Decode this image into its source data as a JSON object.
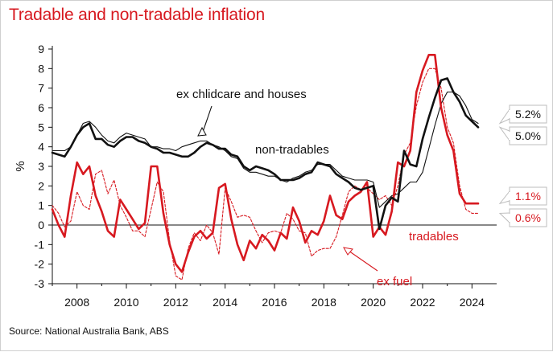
{
  "header": {
    "title": "Tradable and non-tradable inflation"
  },
  "footer": {
    "source": "Source: National Australia Bank, ABS"
  },
  "colors": {
    "red": "#d71920",
    "black": "#111111",
    "title": "#d71920",
    "callout_border": "#bdbdbd"
  },
  "chart_data": {
    "type": "line",
    "ylabel": "%",
    "xlabel": "",
    "ylim": [
      -3,
      9
    ],
    "xlim": [
      2007,
      2025
    ],
    "x_ticks": [
      2008,
      2010,
      2012,
      2014,
      2016,
      2018,
      2020,
      2022,
      2024
    ],
    "y_ticks": [
      -3,
      -2,
      -1,
      0,
      1,
      2,
      3,
      4,
      5,
      6,
      7,
      8,
      9
    ],
    "grid": false,
    "annotations": {
      "ex_childcare": "ex chlidcare and houses",
      "non_tradables": "non-tradables",
      "tradables": "tradables",
      "ex_fuel": "ex fuel"
    },
    "end_labels": [
      "5.2%",
      "5.0%",
      "1.1%",
      "0.6%"
    ],
    "series": [
      {
        "name": "non-tradables",
        "color": "#111111",
        "style": "thick",
        "x": [
          2007.0,
          2007.5,
          2007.75,
          2008.0,
          2008.25,
          2008.5,
          2008.75,
          2009.0,
          2009.25,
          2009.5,
          2009.75,
          2010.0,
          2010.25,
          2010.5,
          2010.75,
          2011.0,
          2011.25,
          2011.5,
          2011.75,
          2012.0,
          2012.25,
          2012.5,
          2012.75,
          2013.0,
          2013.25,
          2013.5,
          2013.75,
          2014.0,
          2014.25,
          2014.5,
          2014.75,
          2015.0,
          2015.25,
          2015.5,
          2015.75,
          2016.0,
          2016.25,
          2016.5,
          2016.75,
          2017.0,
          2017.25,
          2017.5,
          2017.75,
          2018.0,
          2018.25,
          2018.5,
          2018.75,
          2019.0,
          2019.25,
          2019.5,
          2019.75,
          2020.0,
          2020.25,
          2020.5,
          2020.75,
          2021.0,
          2021.25,
          2021.5,
          2021.75,
          2022.0,
          2022.25,
          2022.5,
          2022.75,
          2023.0,
          2023.25,
          2023.5,
          2023.75,
          2024.0,
          2024.25
        ],
        "values": [
          3.7,
          3.5,
          4.0,
          4.6,
          5.0,
          5.2,
          4.4,
          4.4,
          4.1,
          4.0,
          4.3,
          4.5,
          4.5,
          4.3,
          4.2,
          4.0,
          3.9,
          3.7,
          3.7,
          3.6,
          3.5,
          3.5,
          3.7,
          4.0,
          4.2,
          4.1,
          3.9,
          3.9,
          3.6,
          3.5,
          3.0,
          2.8,
          3.0,
          2.9,
          2.8,
          2.6,
          2.3,
          2.3,
          2.3,
          2.4,
          2.6,
          2.7,
          3.2,
          3.1,
          3.0,
          2.6,
          2.4,
          2.2,
          1.9,
          1.8,
          1.9,
          2.0,
          -0.2,
          1.0,
          1.4,
          1.2,
          3.8,
          3.1,
          3.0,
          4.4,
          5.5,
          6.5,
          7.4,
          7.5,
          6.8,
          6.3,
          5.6,
          5.3,
          5.0
        ]
      },
      {
        "name": "ex chlidcare and houses",
        "color": "#111111",
        "style": "thin",
        "x": [
          2007.0,
          2007.5,
          2007.75,
          2008.0,
          2008.25,
          2008.5,
          2008.75,
          2009.0,
          2009.25,
          2009.5,
          2009.75,
          2010.0,
          2010.25,
          2010.5,
          2010.75,
          2011.0,
          2011.25,
          2011.5,
          2011.75,
          2012.0,
          2012.25,
          2012.5,
          2012.75,
          2013.0,
          2013.25,
          2013.5,
          2013.75,
          2014.0,
          2014.25,
          2014.5,
          2014.75,
          2015.0,
          2015.25,
          2015.5,
          2015.75,
          2016.0,
          2016.25,
          2016.5,
          2016.75,
          2017.0,
          2017.25,
          2017.5,
          2017.75,
          2018.0,
          2018.25,
          2018.5,
          2018.75,
          2019.0,
          2019.25,
          2019.5,
          2019.75,
          2020.0,
          2020.25,
          2020.5,
          2020.75,
          2021.0,
          2021.25,
          2021.5,
          2021.75,
          2022.0,
          2022.25,
          2022.5,
          2022.75,
          2023.0,
          2023.25,
          2023.5,
          2023.75,
          2024.0,
          2024.25
        ],
        "values": [
          3.8,
          3.8,
          4.0,
          4.6,
          5.2,
          5.3,
          5.0,
          4.6,
          4.3,
          4.2,
          4.5,
          4.7,
          4.6,
          4.5,
          4.4,
          4.0,
          4.0,
          3.9,
          3.9,
          3.8,
          4.0,
          4.1,
          4.2,
          4.3,
          4.3,
          4.1,
          4.0,
          3.8,
          3.5,
          3.4,
          2.9,
          2.7,
          2.7,
          2.6,
          2.5,
          2.5,
          2.3,
          2.2,
          2.4,
          2.5,
          2.7,
          2.8,
          3.1,
          3.1,
          3.1,
          2.8,
          2.5,
          2.4,
          2.3,
          2.3,
          2.3,
          2.2,
          0.9,
          1.2,
          1.5,
          1.6,
          1.9,
          2.2,
          2.2,
          2.7,
          3.9,
          5.1,
          6.2,
          6.8,
          6.8,
          6.6,
          6.1,
          5.4,
          5.2
        ]
      },
      {
        "name": "tradables",
        "color": "#d71920",
        "style": "thick",
        "x": [
          2007.0,
          2007.25,
          2007.5,
          2007.75,
          2008.0,
          2008.25,
          2008.5,
          2008.75,
          2009.0,
          2009.25,
          2009.5,
          2009.75,
          2010.0,
          2010.25,
          2010.5,
          2010.75,
          2011.0,
          2011.25,
          2011.5,
          2011.75,
          2012.0,
          2012.25,
          2012.5,
          2012.75,
          2013.0,
          2013.25,
          2013.5,
          2013.75,
          2014.0,
          2014.25,
          2014.5,
          2014.75,
          2015.0,
          2015.25,
          2015.5,
          2015.75,
          2016.0,
          2016.25,
          2016.5,
          2016.75,
          2017.0,
          2017.25,
          2017.5,
          2017.75,
          2018.0,
          2018.25,
          2018.5,
          2018.75,
          2019.0,
          2019.25,
          2019.5,
          2019.75,
          2020.0,
          2020.25,
          2020.5,
          2020.75,
          2021.0,
          2021.25,
          2021.5,
          2021.75,
          2022.0,
          2022.25,
          2022.5,
          2022.75,
          2023.0,
          2023.25,
          2023.5,
          2023.75,
          2024.0,
          2024.25
        ],
        "values": [
          0.8,
          0.0,
          -0.6,
          1.5,
          3.2,
          2.6,
          3.0,
          1.5,
          0.7,
          -0.3,
          -0.6,
          1.3,
          0.8,
          0.3,
          -0.2,
          0.1,
          3.0,
          3.0,
          0.6,
          -1.0,
          -2.0,
          -2.4,
          -1.4,
          -0.6,
          -0.3,
          -0.7,
          -0.4,
          1.9,
          2.1,
          0.3,
          -1.0,
          -1.8,
          -0.8,
          -1.2,
          -0.5,
          -0.8,
          -1.3,
          -0.4,
          -0.7,
          0.9,
          0.2,
          -0.9,
          -0.3,
          -0.5,
          0.2,
          1.5,
          0.5,
          0.3,
          1.2,
          1.5,
          1.7,
          2.2,
          -0.6,
          -0.1,
          -0.5,
          0.7,
          3.2,
          3.0,
          3.8,
          6.8,
          7.9,
          8.7,
          8.7,
          6.0,
          4.6,
          3.8,
          1.6,
          1.1,
          1.1,
          1.1
        ]
      },
      {
        "name": "ex fuel",
        "color": "#d71920",
        "style": "dashed",
        "x": [
          2007.0,
          2007.25,
          2007.5,
          2007.75,
          2008.0,
          2008.25,
          2008.5,
          2008.75,
          2009.0,
          2009.25,
          2009.5,
          2009.75,
          2010.0,
          2010.25,
          2010.5,
          2010.75,
          2011.0,
          2011.25,
          2011.5,
          2011.75,
          2012.0,
          2012.25,
          2012.5,
          2012.75,
          2013.0,
          2013.25,
          2013.5,
          2013.75,
          2014.0,
          2014.25,
          2014.5,
          2014.75,
          2015.0,
          2015.25,
          2015.5,
          2015.75,
          2016.0,
          2016.25,
          2016.5,
          2016.75,
          2017.0,
          2017.25,
          2017.5,
          2017.75,
          2018.0,
          2018.25,
          2018.5,
          2018.75,
          2019.0,
          2019.25,
          2019.5,
          2019.75,
          2020.0,
          2020.25,
          2020.5,
          2020.75,
          2021.0,
          2021.25,
          2021.5,
          2021.75,
          2022.0,
          2022.25,
          2022.5,
          2022.75,
          2023.0,
          2023.25,
          2023.5,
          2023.75,
          2024.0,
          2024.25
        ],
        "values": [
          1.0,
          0.6,
          -0.1,
          0.2,
          1.7,
          1.0,
          0.8,
          2.6,
          2.8,
          1.6,
          2.3,
          1.0,
          0.4,
          -0.3,
          -0.3,
          -0.6,
          0.8,
          2.2,
          1.7,
          -0.8,
          -2.6,
          -2.8,
          -1.2,
          -0.4,
          -0.8,
          0.0,
          -0.4,
          -1.5,
          1.9,
          1.2,
          0.4,
          0.5,
          0.4,
          -0.3,
          -0.9,
          -0.4,
          -0.3,
          -0.4,
          0.6,
          0.3,
          -0.3,
          -0.4,
          -1.6,
          -1.3,
          -1.2,
          -1.2,
          -0.6,
          0.5,
          1.7,
          2.0,
          1.8,
          1.9,
          1.6,
          1.3,
          1.5,
          1.0,
          2.0,
          3.6,
          4.2,
          6.1,
          7.3,
          8.0,
          8.0,
          7.0,
          5.0,
          4.2,
          2.0,
          0.8,
          0.6,
          0.6
        ]
      }
    ]
  }
}
